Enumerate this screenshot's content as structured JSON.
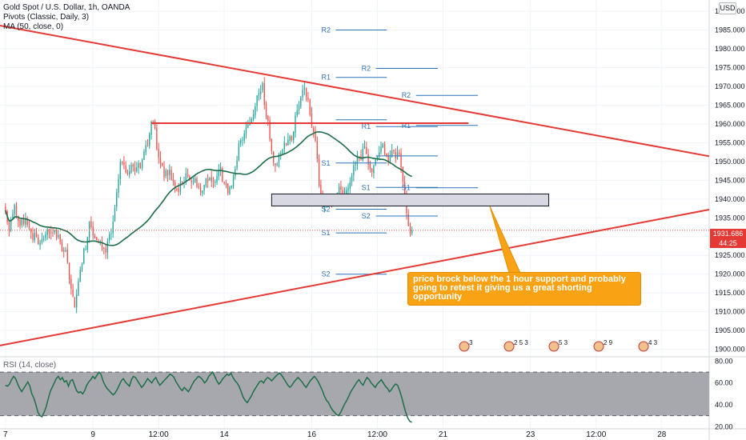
{
  "legend": {
    "symbol": "Gold Spot / U.S. Dollar, 1h, OANDA",
    "pivots": "Pivots (Classic, Daily, 3)",
    "ma": "MA (50, close, 0)",
    "rsi": "RSI (14, close)"
  },
  "currency_badge": "USD",
  "last_price": "1931.686",
  "countdown": "44:25",
  "annotation": "price brock below the 1 hour support and probably going to retest it giving us a great shorting opportunity",
  "event_markers": [
    "3",
    "2 5 3",
    "5 3",
    "2 9",
    "4 3"
  ],
  "colors": {
    "up": "#26a69a",
    "down": "#ef5350",
    "trendline": "#e53935",
    "ma": "#1e6e4a",
    "pivot": "#2e74b5",
    "callout": "#f9a314",
    "rsi_band": "#a7a8ad"
  },
  "chart_data": {
    "type": "candlestick",
    "timeframe": "1h",
    "y_axis": {
      "ticks": [
        1900,
        1905,
        1910,
        1915,
        1920,
        1925,
        1930,
        1935,
        1940,
        1945,
        1950,
        1955,
        1960,
        1965,
        1970,
        1975,
        1980,
        1985,
        1990
      ],
      "ylim": [
        1898,
        1993
      ],
      "tick_labels": [
        "1900.000",
        "1905.000",
        "1910.000",
        "1915.000",
        "1920.000",
        "1925.000",
        "1930.000",
        "1935.000",
        "1940.000",
        "1945.000",
        "1950.000",
        "1955.000",
        "1960.000",
        "1965.000",
        "1970.000",
        "1975.000",
        "1980.000",
        "1985.000",
        "1990.000"
      ]
    },
    "x_axis": {
      "tick_labels": [
        "7",
        "9",
        "12:00",
        "14",
        "16",
        "12:00",
        "21",
        "23",
        "12:00",
        "28"
      ],
      "tick_positions": [
        0,
        48,
        84,
        120,
        168,
        204,
        240,
        288,
        324,
        360
      ],
      "xlim": [
        -3,
        386
      ]
    },
    "close": [
      1937.0,
      1933.9,
      1931.6,
      1934.5,
      1936.0,
      1938.4,
      1935.7,
      1934.2,
      1932.8,
      1934.7,
      1933.3,
      1934.6,
      1933.1,
      1932.2,
      1931.1,
      1929.2,
      1931.0,
      1930.0,
      1928.0,
      1928.4,
      1929.4,
      1929.4,
      1930.6,
      1931.9,
      1930.9,
      1930.9,
      1931.1,
      1931.8,
      1929.7,
      1930.4,
      1928.5,
      1926.1,
      1926.0,
      1926.4,
      1923.2,
      1918.6,
      1916.1,
      1914.1,
      1911.1,
      1914.5,
      1918.1,
      1921.2,
      1922.7,
      1926.8,
      1926.6,
      1929.8,
      1934.1,
      1932.5,
      1930.3,
      1929.6,
      1929.1,
      1928.3,
      1928.4,
      1927.1,
      1926.9,
      1925.7,
      1928.8,
      1930.6,
      1930.8,
      1933.9,
      1937.7,
      1941.8,
      1945.3,
      1949.9,
      1949.7,
      1949.1,
      1947.1,
      1946.8,
      1947.4,
      1949.1,
      1948.6,
      1947.4,
      1948.4,
      1949.6,
      1948.3,
      1950.4,
      1952.7,
      1954.3,
      1954.1,
      1957.4,
      1960.7,
      1960.8,
      1958.9,
      1953.3,
      1951.1,
      1949.6,
      1949.0,
      1945.8,
      1947.7,
      1946.3,
      1947.8,
      1945.1,
      1944.6,
      1942.7,
      1942.7,
      1941.8,
      1944.8,
      1944.3,
      1944.6,
      1946.8,
      1946.2,
      1945.0,
      1944.5,
      1944.8,
      1945.5,
      1943.3,
      1943.0,
      1941.8,
      1942.3,
      1943.8,
      1945.5,
      1944.7,
      1945.6,
      1944.7,
      1944.6,
      1944.7,
      1946.2,
      1947.6,
      1948.5,
      1944.7,
      1944.2,
      1943.8,
      1941.6,
      1943.3,
      1943.5,
      1945.9,
      1948.0,
      1950.3,
      1954.8,
      1955.7,
      1955.8,
      1957.5,
      1959.2,
      1959.7,
      1960.5,
      1961.3,
      1962.5,
      1964.7,
      1967.6,
      1968.2,
      1968.6,
      1970.9,
      1965.1,
      1961.9,
      1960.9,
      1955.9,
      1952.7,
      1949.7,
      1949.0,
      1949.4,
      1951.9,
      1952.2,
      1953.2,
      1955.2,
      1954.4,
      1955.8,
      1956.7,
      1955.7,
      1957.9,
      1962.2,
      1963.6,
      1964.9,
      1967.2,
      1969.1,
      1969.6,
      1967.2,
      1966.4,
      1962.5,
      1959.0,
      1957.8,
      1955.5,
      1950.7,
      1943.6,
      1940.9,
      1938.5,
      1938.8,
      1939.2,
      1940.2,
      1940.4,
      1938.2,
      1939.5,
      1941.1,
      1941.6,
      1943.3,
      1942.5,
      1941.2,
      1941.5,
      1942.4,
      1943.0,
      1944.4,
      1946.3,
      1948.9,
      1949.4,
      1951.6,
      1951.1,
      1950.7,
      1953.4,
      1954.0,
      1952.1,
      1949.2,
      1948.0,
      1947.2,
      1949.0,
      1950.6,
      1951.4,
      1952.5,
      1953.9,
      1954.8,
      1952.1,
      1951.5,
      1949.7,
      1951.4,
      1952.9,
      1952.7,
      1950.8,
      1952.5,
      1952.0,
      1948.4,
      1944.7,
      1940.8,
      1936.2,
      1932.8,
      1930.6,
      1931.686
    ],
    "open_high_low": "generated from close series for rendering",
    "series": [
      {
        "name": "MA (50, close, 0)",
        "type": "line",
        "from_index": 0
      }
    ],
    "pivot_levels": [
      {
        "label": "R2",
        "value": 1985.0,
        "x_range": [
          168,
          196
        ]
      },
      {
        "label": "R1",
        "value": 1972.4,
        "x_range": [
          168,
          196
        ]
      },
      {
        "label": "S1",
        "value": 1949.6,
        "x_range": [
          168,
          196
        ]
      },
      {
        "label": "S2",
        "value": 1937.3,
        "x_range": [
          168,
          196
        ]
      },
      {
        "label": "",
        "value": 1961.1,
        "x_range": [
          168,
          196
        ]
      },
      {
        "label": "R2",
        "value": 1974.8,
        "x_range": [
          190,
          224
        ]
      },
      {
        "label": "R1",
        "value": 1959.3,
        "x_range": [
          190,
          224
        ]
      },
      {
        "label": "",
        "value": 1951.5,
        "x_range": [
          190,
          224
        ]
      },
      {
        "label": "S1",
        "value": 1943.1,
        "x_range": [
          190,
          224
        ]
      },
      {
        "label": "S2",
        "value": 1935.5,
        "x_range": [
          190,
          224
        ]
      },
      {
        "label": "S1",
        "value": 1931.0,
        "x_range": [
          168,
          196
        ]
      },
      {
        "label": "S2",
        "value": 1920.0,
        "x_range": [
          168,
          196
        ]
      },
      {
        "label": "R2",
        "value": 1967.6,
        "x_range": [
          212,
          246
        ]
      },
      {
        "label": "R1",
        "value": 1959.6,
        "x_range": [
          212,
          246
        ]
      },
      {
        "label": "S1",
        "value": 1943.0,
        "x_range": [
          212,
          246
        ]
      }
    ],
    "trendlines": [
      {
        "name": "descending resistance",
        "from": [
          -3,
          1986.2
        ],
        "to": [
          386,
          1951.4
        ]
      },
      {
        "name": "ascending support",
        "from": [
          -3,
          1901.0
        ],
        "to": [
          386,
          1937.2
        ]
      },
      {
        "name": "horizontal resistance",
        "from": [
          80,
          1960.2
        ],
        "to": [
          254,
          1960.2
        ]
      }
    ],
    "zone": {
      "name": "support zone",
      "y_range": [
        1939.0,
        1940.5
      ],
      "x_range": [
        146,
        298
      ]
    },
    "current_price_line": 1931.686,
    "rsi": {
      "name": "RSI (14, close)",
      "y_ticks": [
        20,
        40,
        60,
        80
      ],
      "tick_labels": [
        "20.00",
        "40.00",
        "60.00",
        "80.00"
      ],
      "ylim": [
        20,
        80
      ],
      "band": [
        30,
        70
      ],
      "values": [
        58,
        57,
        59,
        63,
        66,
        64,
        59,
        55,
        52,
        55,
        58,
        61,
        57,
        50,
        46,
        40,
        33,
        30,
        29,
        33,
        38,
        45,
        52,
        56,
        60,
        64,
        66,
        63,
        65,
        61,
        62,
        57,
        62,
        63,
        58,
        53,
        51,
        52,
        50,
        53,
        58,
        61,
        63,
        66,
        64,
        67,
        70,
        68,
        62,
        58,
        55,
        53,
        51,
        49,
        51,
        54,
        58,
        62,
        64,
        61,
        59,
        57,
        63,
        66,
        65,
        62,
        59,
        56,
        58,
        61,
        64,
        62,
        60,
        63,
        65,
        61,
        58,
        60,
        62,
        64,
        66,
        68,
        67,
        65,
        61,
        58,
        55,
        53,
        56,
        54,
        52,
        55,
        59,
        62,
        64,
        66,
        65,
        63,
        60,
        62,
        66,
        68,
        70,
        66,
        62,
        59,
        61,
        64,
        66,
        68,
        67,
        69,
        65,
        62,
        60,
        57,
        52,
        47,
        44,
        42,
        45,
        48,
        52,
        55,
        58,
        61,
        62,
        60,
        63,
        65,
        64,
        62,
        64,
        66,
        68,
        69,
        67,
        64,
        61,
        58,
        56,
        58,
        61,
        63,
        65,
        63,
        61,
        58,
        56,
        59,
        62,
        64,
        66,
        64,
        61,
        57,
        53,
        48,
        44,
        42,
        38,
        35,
        33,
        31,
        30,
        33,
        37,
        41,
        44,
        48,
        52,
        55,
        58,
        61,
        63,
        60,
        58,
        62,
        65,
        63,
        60,
        58,
        56,
        59,
        61,
        63,
        60,
        57,
        55,
        52,
        54,
        57,
        59,
        58,
        53,
        47,
        40,
        33,
        28,
        25,
        24
      ]
    }
  }
}
